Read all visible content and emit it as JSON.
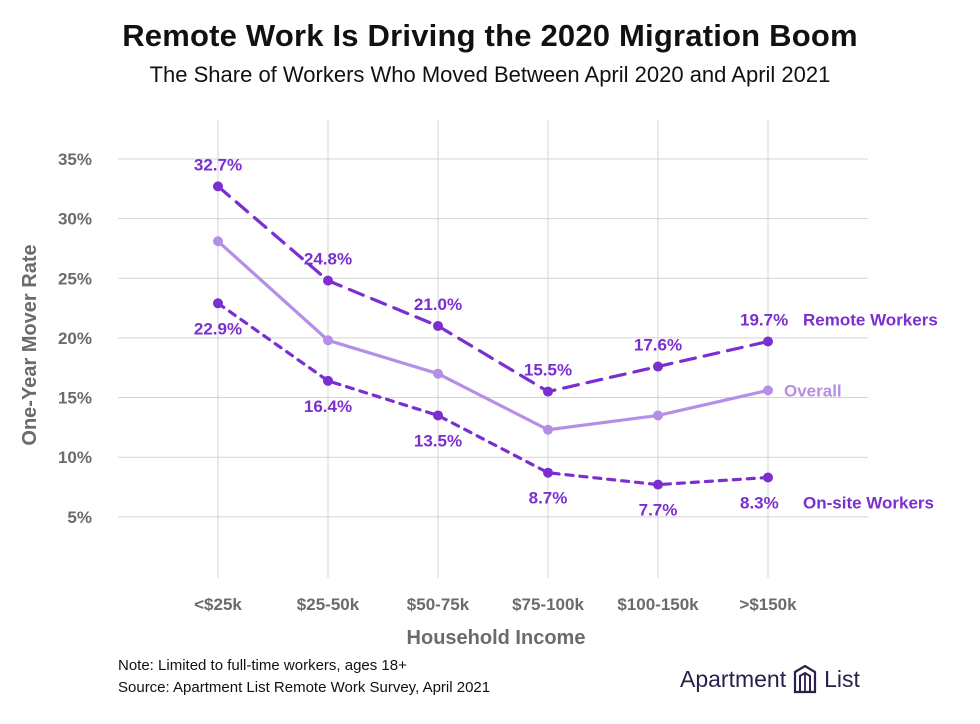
{
  "title": "Remote Work Is Driving the 2020 Migration Boom",
  "subtitle": "The Share of Workers Who Moved Between April 2020 and April 2021",
  "chart_data": {
    "type": "line",
    "xlabel": "Household Income",
    "ylabel": "One-Year Mover Rate",
    "categories": [
      "<$25k",
      "$25-50k",
      "$50-75k",
      "$75-100k",
      "$100-150k",
      ">$150k"
    ],
    "y_ticks": [
      "35%",
      "30%",
      "25%",
      "20%",
      "15%",
      "10%",
      "5%"
    ],
    "ylim": [
      0,
      35
    ],
    "grid": true,
    "series": [
      {
        "name": "Remote Workers",
        "style": "dashed",
        "color": "#7b2fd1",
        "values": [
          32.7,
          24.8,
          21.0,
          15.5,
          17.6,
          19.7
        ],
        "labels": [
          "32.7%",
          "24.8%",
          "21.0%",
          "15.5%",
          "17.6%",
          "19.7%"
        ]
      },
      {
        "name": "Overall",
        "style": "solid",
        "color": "#b58ee6",
        "values": [
          28.1,
          19.8,
          17.0,
          12.3,
          13.5,
          15.6
        ],
        "labels": []
      },
      {
        "name": "On-site Workers",
        "style": "dotted",
        "color": "#7b2fd1",
        "values": [
          22.9,
          16.4,
          13.5,
          8.7,
          7.7,
          8.3
        ],
        "labels": [
          "22.9%",
          "16.4%",
          "13.5%",
          "8.7%",
          "7.7%",
          "8.3%"
        ]
      }
    ]
  },
  "footer": {
    "note": "Note: Limited to full-time workers, ages 18+",
    "source": "Source: Apartment List Remote Work Survey, April 2021"
  },
  "logo": {
    "word1": "Apartment",
    "word2": "List",
    "icon": "apartment-list-logo-icon"
  }
}
